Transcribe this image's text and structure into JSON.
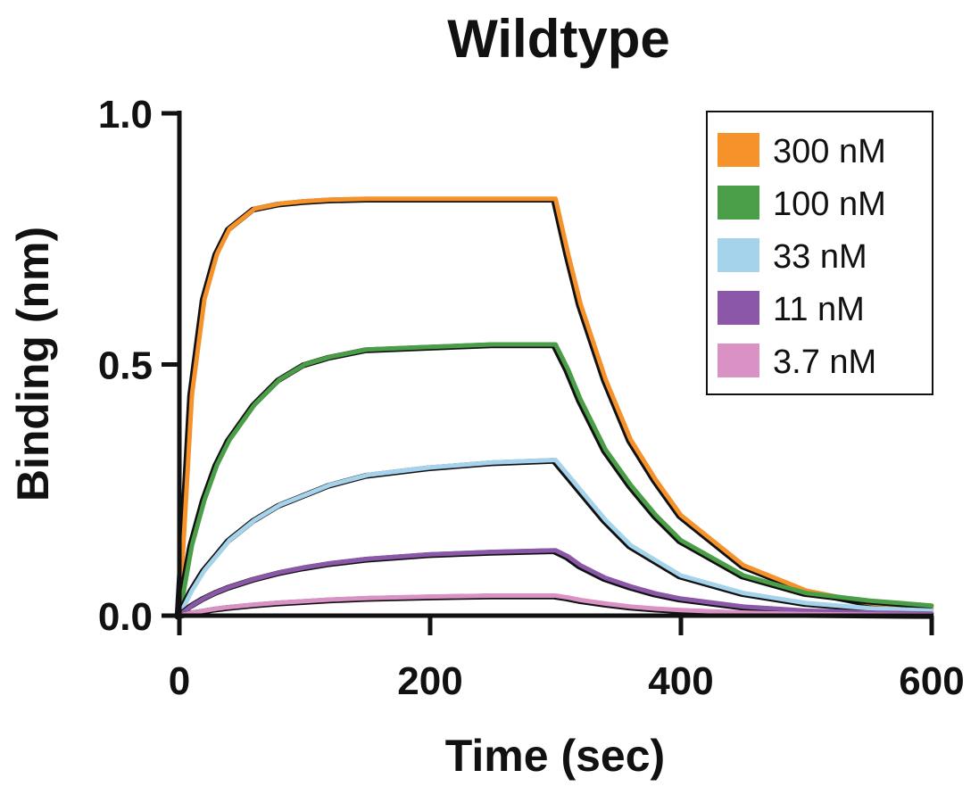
{
  "chart_data": {
    "type": "line",
    "title": "Wildtype",
    "xlabel": "Time (sec)",
    "ylabel": "Binding (nm)",
    "xlim": [
      0,
      600
    ],
    "ylim": [
      0,
      1.0
    ],
    "x_ticks": [
      0,
      200,
      400,
      600
    ],
    "x_tick_labels": [
      "0",
      "200",
      "400",
      "600"
    ],
    "y_ticks": [
      0,
      0.5,
      1.0
    ],
    "y_tick_labels": [
      "0.0",
      "0.5",
      "1.0"
    ],
    "association_end": 300,
    "grid": false,
    "legend_position": "top-right",
    "fit_color": "#111111",
    "x": [
      0,
      10,
      20,
      30,
      40,
      60,
      80,
      100,
      120,
      150,
      200,
      250,
      300,
      310,
      320,
      340,
      360,
      380,
      400,
      450,
      500,
      550,
      600
    ],
    "series": [
      {
        "name": "300 nM",
        "color": "#F5922A",
        "values": [
          0.0,
          0.44,
          0.63,
          0.72,
          0.77,
          0.81,
          0.82,
          0.825,
          0.828,
          0.83,
          0.83,
          0.83,
          0.83,
          0.72,
          0.62,
          0.47,
          0.35,
          0.27,
          0.2,
          0.1,
          0.05,
          0.025,
          0.015
        ]
      },
      {
        "name": "100 nM",
        "color": "#4A9E47",
        "values": [
          0.0,
          0.14,
          0.23,
          0.3,
          0.35,
          0.42,
          0.47,
          0.5,
          0.515,
          0.53,
          0.535,
          0.54,
          0.54,
          0.49,
          0.43,
          0.33,
          0.26,
          0.2,
          0.15,
          0.08,
          0.045,
          0.03,
          0.02
        ]
      },
      {
        "name": "33 nM",
        "color": "#A6D3EC",
        "values": [
          0.0,
          0.05,
          0.09,
          0.12,
          0.15,
          0.19,
          0.22,
          0.24,
          0.26,
          0.28,
          0.295,
          0.305,
          0.31,
          0.28,
          0.25,
          0.19,
          0.14,
          0.11,
          0.08,
          0.045,
          0.025,
          0.015,
          0.01
        ]
      },
      {
        "name": "11 nM",
        "color": "#8B57A9",
        "values": [
          0.0,
          0.02,
          0.035,
          0.047,
          0.057,
          0.073,
          0.086,
          0.096,
          0.104,
          0.113,
          0.122,
          0.127,
          0.13,
          0.118,
          0.1,
          0.075,
          0.058,
          0.044,
          0.034,
          0.018,
          0.01,
          0.006,
          0.004
        ]
      },
      {
        "name": "3.7 nM",
        "color": "#DA92C4",
        "values": [
          0.0,
          0.006,
          0.01,
          0.014,
          0.017,
          0.022,
          0.026,
          0.029,
          0.032,
          0.035,
          0.038,
          0.04,
          0.04,
          0.036,
          0.031,
          0.024,
          0.018,
          0.014,
          0.011,
          0.006,
          0.003,
          0.002,
          0.001
        ]
      }
    ]
  }
}
